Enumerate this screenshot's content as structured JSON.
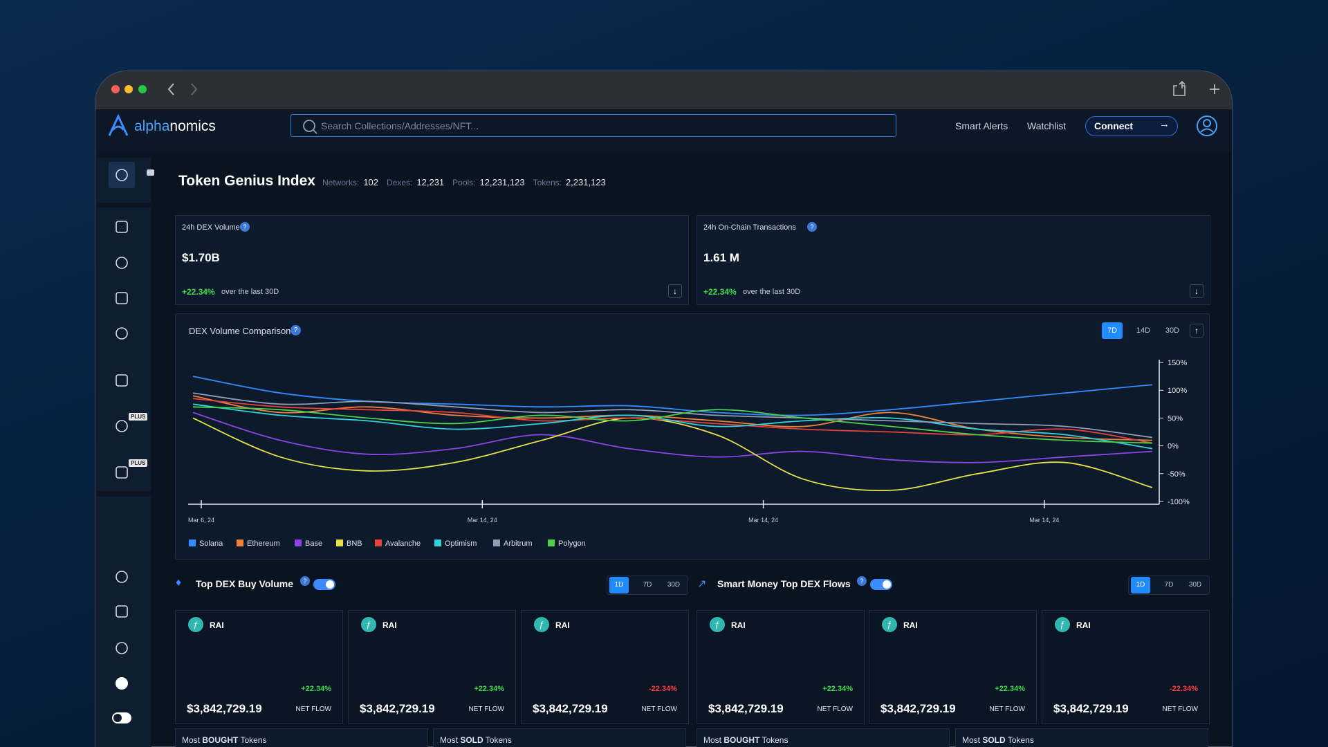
{
  "nav": {
    "logo_a": "alpha",
    "logo_b": "nomics",
    "search_placeholder": "Search Collections/Addresses/NFT...",
    "links": [
      "Smart Alerts",
      "Watchlist"
    ],
    "connect": "Connect"
  },
  "sidebar_badges": [
    "PLUS",
    "PLUS"
  ],
  "header": {
    "title": "Token Genius Index",
    "stats": [
      {
        "label": "Networks:",
        "value": "102"
      },
      {
        "label": "Dexes:",
        "value": "12,231"
      },
      {
        "label": "Pools:",
        "value": "12,231,123"
      },
      {
        "label": "Tokens:",
        "value": "2,231,123"
      }
    ]
  },
  "stat_cards": [
    {
      "title": "24h DEX Volume",
      "value": "$1.70B",
      "change": "+22.34%",
      "period": "over the last 30D"
    },
    {
      "title": "24h On-Chain Transactions",
      "value": "1.61 M",
      "change": "+22.34%",
      "period": "over the last 30D"
    }
  ],
  "comparison": {
    "title": "DEX Volume Comparison",
    "ranges": [
      "7D",
      "14D",
      "30D"
    ],
    "x_labels": [
      "Mar 6, 24",
      "Mar 14, 24",
      "Mar 14, 24",
      "Mar 14, 24"
    ],
    "ylim": [
      -100,
      150
    ],
    "yticks": [
      {
        "value": 150,
        "label": "150%"
      },
      {
        "value": 100,
        "label": "100%"
      },
      {
        "value": 50,
        "label": "50%"
      },
      {
        "value": 0,
        "label": "0%"
      },
      {
        "value": -50,
        "label": "-50%"
      },
      {
        "value": -100,
        "label": "-100%"
      }
    ],
    "series": [
      {
        "name": "Solana",
        "color": "#2f8cff",
        "values": [
          125,
          95,
          80,
          75,
          70,
          72,
          60,
          55,
          65,
          80,
          95,
          110
        ]
      },
      {
        "name": "Ethereum",
        "color": "#f0823a",
        "values": [
          90,
          60,
          70,
          55,
          50,
          55,
          45,
          35,
          60,
          30,
          15,
          10
        ]
      },
      {
        "name": "Base",
        "color": "#8b44e8",
        "values": [
          60,
          10,
          -15,
          -5,
          20,
          -5,
          -20,
          -10,
          -25,
          -30,
          -20,
          -10
        ]
      },
      {
        "name": "BNB",
        "color": "#e6e04a",
        "values": [
          50,
          -20,
          -45,
          -30,
          10,
          50,
          20,
          -60,
          -80,
          -50,
          -30,
          -75
        ]
      },
      {
        "name": "Avalanche",
        "color": "#e5433b",
        "values": [
          85,
          70,
          65,
          60,
          45,
          50,
          40,
          30,
          25,
          20,
          30,
          5
        ]
      },
      {
        "name": "Optimism",
        "color": "#2fd3e0",
        "values": [
          75,
          55,
          45,
          30,
          40,
          55,
          35,
          45,
          50,
          30,
          20,
          -5
        ]
      },
      {
        "name": "Arbitrum",
        "color": "#8f9db8",
        "values": [
          95,
          75,
          80,
          70,
          60,
          65,
          55,
          50,
          45,
          40,
          35,
          15
        ]
      },
      {
        "name": "Polygon",
        "color": "#4cd24a",
        "values": [
          70,
          65,
          50,
          40,
          55,
          45,
          65,
          50,
          35,
          20,
          10,
          5
        ]
      }
    ]
  },
  "sections": [
    {
      "title": "Top DEX Buy Volume",
      "ranges": [
        "1D",
        "7D",
        "30D"
      ]
    },
    {
      "title": "Smart Money Top DEX Flows",
      "ranges": [
        "1D",
        "7D",
        "30D"
      ]
    }
  ],
  "token_cards": [
    {
      "symbol": "RAI",
      "change": "+22.34%",
      "amount": "$3,842,729.19",
      "label": "NET FLOW"
    },
    {
      "symbol": "RAI",
      "change": "+22.34%",
      "amount": "$3,842,729.19",
      "label": "NET FLOW"
    },
    {
      "symbol": "RAI",
      "change": "-22.34%",
      "amount": "$3,842,729.19",
      "label": "NET FLOW"
    },
    {
      "symbol": "RAI",
      "change": "+22.34%",
      "amount": "$3,842,729.19",
      "label": "NET FLOW"
    },
    {
      "symbol": "RAI",
      "change": "+22.34%",
      "amount": "$3,842,729.19",
      "label": "NET FLOW"
    },
    {
      "symbol": "RAI",
      "change": "-22.34%",
      "amount": "$3,842,729.19",
      "label": "NET FLOW"
    }
  ],
  "lists": [
    {
      "prefix": "Most ",
      "bold": "BOUGHT",
      "suffix": " Tokens"
    },
    {
      "prefix": "Most ",
      "bold": "SOLD",
      "suffix": " Tokens"
    },
    {
      "prefix": "Most ",
      "bold": "BOUGHT",
      "suffix": " Tokens"
    },
    {
      "prefix": "Most ",
      "bold": "SOLD",
      "suffix": " Tokens"
    }
  ]
}
